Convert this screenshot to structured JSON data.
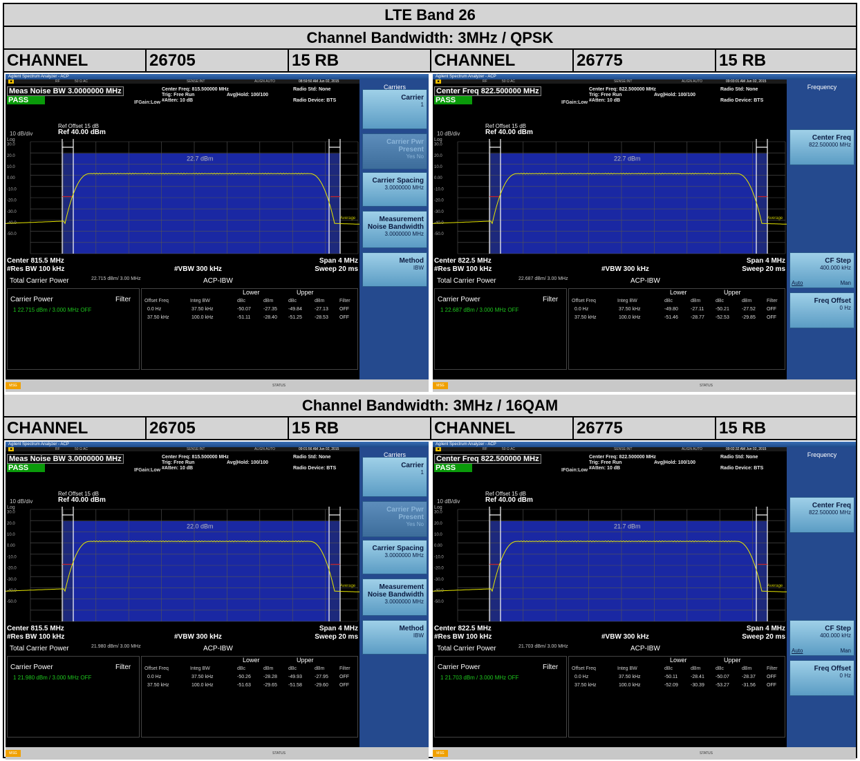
{
  "title": "LTE Band 26",
  "sections": [
    {
      "heading": "Channel Bandwidth: 3MHz / QPSK"
    },
    {
      "heading": "Channel Bandwidth: 3MHz / 16QAM"
    }
  ],
  "channel_label": "CHANNEL",
  "rb_label": "15 RB",
  "channels": [
    "26705",
    "26775"
  ],
  "common": {
    "window_title": "Agilent Spectrum Analyzer - ACP",
    "status_rf": "RF",
    "status_ohm": "50 Ω  AC",
    "status_sense": "SENSE:INT",
    "status_align": "ALIGN AUTO",
    "pass": "PASS",
    "ifgain": "IFGain:Low",
    "trig": "Trig: Free Run",
    "atten": "#Atten: 10 dB",
    "avg_hold": "Avg|Hold: 100/100",
    "radio_std": "Radio Std: None",
    "radio_device": "Radio Device: BTS",
    "div": "10 dB/div",
    "log": "Log",
    "ref_offset": "Ref Offset 15 dB",
    "ref_level": "Ref 40.00 dBm",
    "res_bw": "#Res BW  100 kHz",
    "vbw": "#VBW  300 kHz",
    "span": "Span 4 MHz",
    "sweep": "Sweep  20 ms",
    "total_carrier_power": "Total Carrier Power",
    "acp_ibw": "ACP-IBW",
    "carrier_power": "Carrier Power",
    "filter": "Filter",
    "lower": "Lower",
    "upper": "Upper",
    "col_offset": "Offset Freq",
    "col_integ": "Integ BW",
    "col_dbc": "dBc",
    "col_dbm": "dBm",
    "col_filter": "Filter",
    "average_label": "Average",
    "msg": "MSG",
    "status": "STATUS",
    "yticks": [
      "30.0",
      "20.0",
      "10.0",
      "0.00",
      "-10.0",
      "-20.0",
      "-30.0",
      "-40.0",
      "-50.0"
    ]
  },
  "panels": [
    {
      "timestamp": "08:59:50 AM Jun 02, 2015",
      "main_label": "Meas Noise BW 3.0000000 MHz",
      "center_freq_line": "Center Freq: 815.500000 MHz",
      "center": "Center  815.5 MHz",
      "marker": "22.7 dBm",
      "tcp_value": "22.715 dBm/ 3.00 MHz",
      "carrier_row": "1    22.715 dBm /   3.000 MHz   OFF",
      "rows": [
        [
          "0.0 Hz",
          "37.50 kHz",
          "-50.07",
          "-27.35",
          "-49.84",
          "-27.13",
          "OFF"
        ],
        [
          "37.50 kHz",
          "100.0 kHz",
          "-51.11",
          "-28.40",
          "-51.25",
          "-28.53",
          "OFF"
        ]
      ],
      "menu": "Carriers",
      "softkeys": [
        {
          "label": "Carrier",
          "value": "1"
        },
        {
          "label": "Carrier Pwr Present",
          "value": "Yes          No"
        },
        {
          "label": "Carrier Spacing",
          "value": "3.0000000 MHz"
        },
        {
          "label": "Measurement Noise Bandwidth",
          "value": "3.0000000 MHz"
        },
        {
          "label": "Method",
          "value": "IBW"
        }
      ]
    },
    {
      "timestamp": "09:03:01 AM Jun 02, 2015",
      "main_label": "Center Freq 822.500000 MHz",
      "center_freq_line": "Center Freq: 822.500000 MHz",
      "center": "Center  822.5 MHz",
      "marker": "22.7 dBm",
      "tcp_value": "22.687 dBm/ 3.00 MHz",
      "carrier_row": "1    22.687 dBm /   3.000 MHz   OFF",
      "rows": [
        [
          "0.0 Hz",
          "37.50 kHz",
          "-49.80",
          "-27.11",
          "-50.21",
          "-27.52",
          "OFF"
        ],
        [
          "37.50 kHz",
          "100.0 kHz",
          "-51.46",
          "-28.77",
          "-52.53",
          "-29.85",
          "OFF"
        ]
      ],
      "menu": "Frequency",
      "softkeys": [
        {
          "label": "Center Freq",
          "value": "822.500000 MHz"
        },
        {
          "label": "CF Step",
          "value": "400.000 kHz"
        },
        {
          "label": "Freq Offset",
          "value": "0 Hz"
        }
      ],
      "cf_auto": "Auto",
      "cf_man": "Man"
    },
    {
      "timestamp": "09:01:56 AM Jun 02, 2015",
      "main_label": "Meas Noise BW 3.0000000 MHz",
      "center_freq_line": "Center Freq: 815.500000 MHz",
      "center": "Center  815.5 MHz",
      "marker": "22.0 dBm",
      "tcp_value": "21.980 dBm/ 3.00 MHz",
      "carrier_row": "1    21.980 dBm /   3.000 MHz   OFF",
      "rows": [
        [
          "0.0 Hz",
          "37.50 kHz",
          "-50.26",
          "-28.28",
          "-49.93",
          "-27.95",
          "OFF"
        ],
        [
          "37.50 kHz",
          "100.0 kHz",
          "-51.63",
          "-29.65",
          "-51.58",
          "-29.60",
          "OFF"
        ]
      ],
      "menu": "Carriers",
      "softkeys": [
        {
          "label": "Carrier",
          "value": "1"
        },
        {
          "label": "Carrier Pwr Present",
          "value": "Yes          No"
        },
        {
          "label": "Carrier Spacing",
          "value": "3.0000000 MHz"
        },
        {
          "label": "Measurement Noise Bandwidth",
          "value": "3.0000000 MHz"
        },
        {
          "label": "Method",
          "value": "IBW"
        }
      ]
    },
    {
      "timestamp": "09:02:32 AM Jun 02, 2015",
      "main_label": "Center Freq 822.500000 MHz",
      "center_freq_line": "Center Freq: 822.500000 MHz",
      "center": "Center  822.5 MHz",
      "marker": "21.7 dBm",
      "tcp_value": "21.703 dBm/ 3.00 MHz",
      "carrier_row": "1    21.703 dBm /   3.000 MHz   OFF",
      "rows": [
        [
          "0.0 Hz",
          "37.50 kHz",
          "-50.11",
          "-28.41",
          "-50.07",
          "-28.37",
          "OFF"
        ],
        [
          "37.50 kHz",
          "100.0 kHz",
          "-52.09",
          "-30.39",
          "-53.27",
          "-31.56",
          "OFF"
        ]
      ],
      "menu": "Frequency",
      "softkeys": [
        {
          "label": "Center Freq",
          "value": "822.500000 MHz"
        },
        {
          "label": "CF Step",
          "value": "400.000 kHz"
        },
        {
          "label": "Freq Offset",
          "value": "0 Hz"
        }
      ],
      "cf_auto": "Auto",
      "cf_man": "Man"
    }
  ]
}
